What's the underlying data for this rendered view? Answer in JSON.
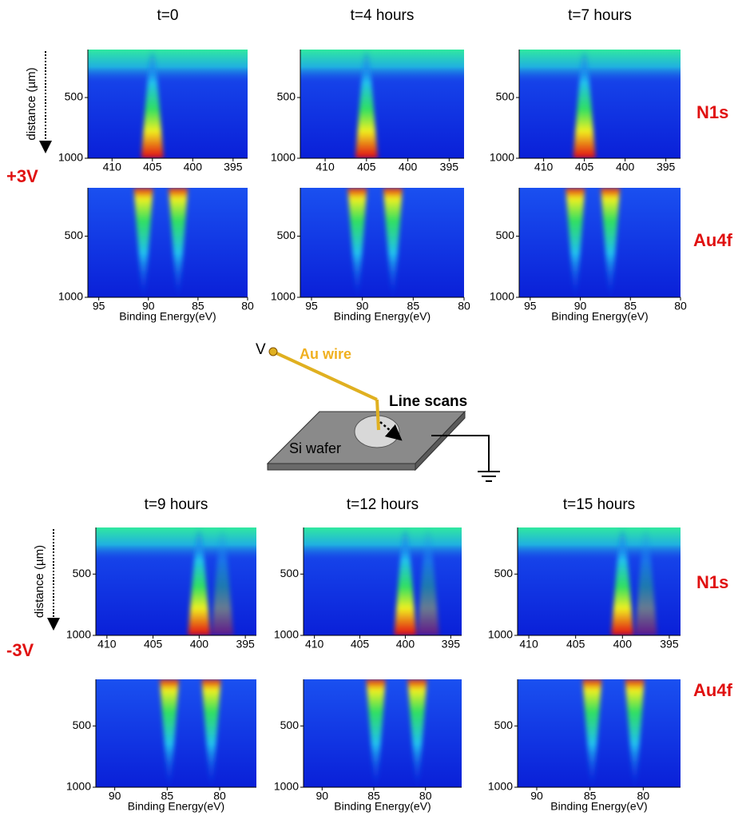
{
  "groups": [
    {
      "bias": "+3V",
      "times": [
        "t=0",
        "t=4 hours",
        "t=7 hours"
      ],
      "n1s": {
        "label": "N1s",
        "xlim": [
          413,
          393.2
        ],
        "xticks": [
          410,
          405,
          400,
          395
        ],
        "peaks": [
          405
        ]
      },
      "au4f": {
        "label": "Au4f",
        "xlim": [
          96.1,
          80
        ],
        "xticks": [
          95,
          90,
          85,
          80
        ],
        "peaks": [
          90.5,
          87
        ],
        "xlabel": "Binding Energy(eV)"
      },
      "ylim": [
        1000,
        105
      ],
      "yticks": [
        500,
        1000
      ]
    },
    {
      "bias": "-3V",
      "times": [
        "t=9 hours",
        "t=12 hours",
        "t=15 hours"
      ],
      "n1s": {
        "label": "N1s",
        "xlim": [
          411.2,
          393.8
        ],
        "xticks": [
          410,
          405,
          400,
          395
        ],
        "peaks": [
          400,
          397.5
        ]
      },
      "au4f": {
        "label": "Au4f",
        "xlim": [
          91.8,
          76.5
        ],
        "xticks": [
          90,
          85,
          80
        ],
        "peaks": [
          84.8,
          80.8
        ],
        "xlabel": "Binding Energy(eV)"
      },
      "ylim": [
        1000,
        120
      ],
      "yticks": [
        500,
        1000
      ]
    }
  ],
  "ylabel": "distance (µm)",
  "diagram": {
    "voltage": "V",
    "wire": "Au wire",
    "scan": "Line scans",
    "substrate": "Si wafer"
  }
}
